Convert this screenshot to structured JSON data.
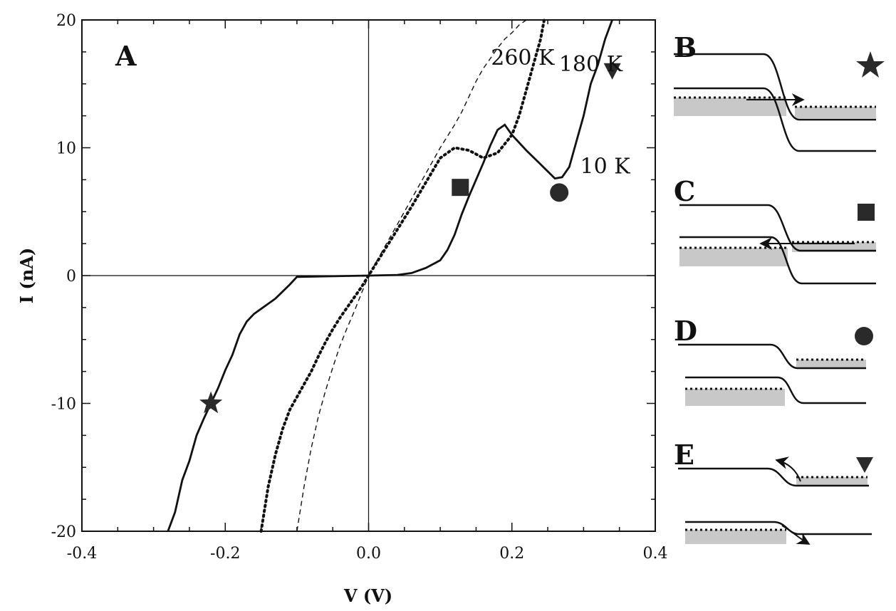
{
  "chart_data": {
    "type": "line",
    "title": "",
    "xlabel": "V (V)",
    "ylabel": "I (nA)",
    "xlim": [
      -0.4,
      0.4
    ],
    "ylim": [
      -20,
      20
    ],
    "xticks": [
      "-0.4",
      "-0.2",
      "0.0",
      "0.2",
      "0.4"
    ],
    "yticks": [
      "20",
      "10",
      "0",
      "-10",
      "-20"
    ],
    "grid": false,
    "panel_label": "A",
    "series": [
      {
        "name": "10 K",
        "style": "solid",
        "x": [
          -0.28,
          -0.27,
          -0.26,
          -0.25,
          -0.24,
          -0.23,
          -0.22,
          -0.21,
          -0.2,
          -0.19,
          -0.18,
          -0.17,
          -0.16,
          -0.15,
          -0.13,
          -0.11,
          -0.1,
          -0.05,
          0.0,
          0.04,
          0.06,
          0.08,
          0.1,
          0.11,
          0.12,
          0.13,
          0.14,
          0.15,
          0.16,
          0.17,
          0.18,
          0.19,
          0.2,
          0.22,
          0.24,
          0.26,
          0.27,
          0.28,
          0.29,
          0.3,
          0.31,
          0.32,
          0.33,
          0.34
        ],
        "y": [
          -20,
          -18.5,
          -16.0,
          -14.5,
          -12.5,
          -11.2,
          -10.0,
          -8.8,
          -7.4,
          -6.2,
          -4.6,
          -3.6,
          -3.0,
          -2.6,
          -1.8,
          -0.7,
          -0.1,
          -0.05,
          0.0,
          0.05,
          0.2,
          0.6,
          1.2,
          2.0,
          3.2,
          4.8,
          6.2,
          7.5,
          8.8,
          10.2,
          11.4,
          11.8,
          11.0,
          9.8,
          8.7,
          7.6,
          7.7,
          8.5,
          10.5,
          12.5,
          15.0,
          16.5,
          18.5,
          20
        ]
      },
      {
        "name": "180 K",
        "style": "dotted",
        "x": [
          -0.15,
          -0.14,
          -0.13,
          -0.12,
          -0.11,
          -0.1,
          -0.09,
          -0.08,
          -0.07,
          -0.06,
          -0.05,
          -0.04,
          -0.03,
          -0.02,
          -0.01,
          0.0,
          0.02,
          0.04,
          0.06,
          0.08,
          0.1,
          0.12,
          0.14,
          0.16,
          0.18,
          0.2,
          0.21,
          0.22,
          0.23,
          0.24,
          0.245
        ],
        "y": [
          -20,
          -16.5,
          -14.0,
          -12.0,
          -10.5,
          -9.5,
          -8.5,
          -7.5,
          -6.3,
          -5.2,
          -4.2,
          -3.3,
          -2.5,
          -1.7,
          -0.9,
          0.0,
          1.8,
          3.6,
          5.4,
          7.3,
          9.2,
          10.0,
          9.8,
          9.2,
          9.6,
          11.0,
          12.5,
          14.5,
          16.5,
          18.5,
          20
        ]
      },
      {
        "name": "260 K",
        "style": "dashed",
        "x": [
          -0.1,
          -0.09,
          -0.08,
          -0.07,
          -0.06,
          -0.05,
          -0.04,
          -0.03,
          -0.02,
          -0.01,
          0.0,
          0.02,
          0.04,
          0.06,
          0.08,
          0.1,
          0.12,
          0.13,
          0.14,
          0.15,
          0.16,
          0.17,
          0.18,
          0.19,
          0.2,
          0.21,
          0.22
        ],
        "y": [
          -20,
          -16.5,
          -13.5,
          -11.0,
          -9.0,
          -7.2,
          -5.5,
          -4.1,
          -2.8,
          -1.4,
          0.0,
          2.0,
          4.0,
          6.0,
          8.0,
          10.0,
          11.8,
          12.8,
          14.0,
          15.2,
          16.2,
          17.0,
          17.8,
          18.5,
          19.0,
          19.6,
          20
        ]
      }
    ],
    "curve_labels": [
      {
        "text": "260 K",
        "x": 0.215,
        "y": 16.5
      },
      {
        "text": "180 K",
        "x": 0.31,
        "y": 16.0
      },
      {
        "text": "10 K",
        "x": 0.33,
        "y": 8.0
      }
    ],
    "markers": [
      {
        "shape": "star",
        "x": -0.22,
        "y": -10.0
      },
      {
        "shape": "square",
        "x": 0.128,
        "y": 6.9
      },
      {
        "shape": "circle",
        "x": 0.266,
        "y": 6.5
      },
      {
        "shape": "triangle-down",
        "x": 0.34,
        "y": 16.0
      }
    ]
  },
  "side_panels": [
    {
      "label": "B",
      "marker": "star"
    },
    {
      "label": "C",
      "marker": "square"
    },
    {
      "label": "D",
      "marker": "circle"
    },
    {
      "label": "E",
      "marker": "triangle-down"
    }
  ]
}
